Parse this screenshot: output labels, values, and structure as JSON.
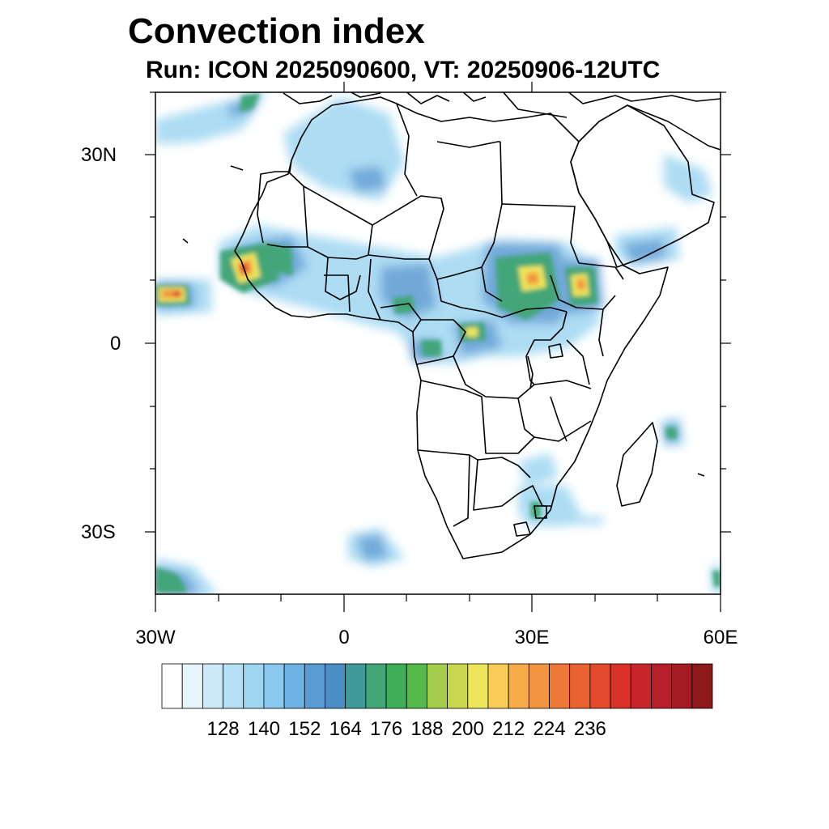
{
  "header": {
    "title": "Convection index",
    "subtitle": "Run: ICON 2025090600,  VT: 20250906-12UTC"
  },
  "map": {
    "region": "Africa",
    "lon_range": [
      -30,
      60
    ],
    "lat_range": [
      -40,
      40
    ],
    "lat_ticks": [
      {
        "value": 30,
        "label": "30N"
      },
      {
        "value": 0,
        "label": "0"
      },
      {
        "value": -30,
        "label": "30S"
      }
    ],
    "lon_ticks": [
      {
        "value": -30,
        "label": "30W"
      },
      {
        "value": 0,
        "label": "0"
      },
      {
        "value": 30,
        "label": "30E"
      },
      {
        "value": 60,
        "label": "60E"
      }
    ]
  },
  "colorbar": {
    "labels": [
      "128",
      "140",
      "152",
      "164",
      "176",
      "188",
      "200",
      "212",
      "224",
      "236"
    ],
    "colors": [
      "#ffffff",
      "#e6f4fb",
      "#cde9f7",
      "#b5e0f5",
      "#9fd6f2",
      "#8ac9ee",
      "#6cb2e3",
      "#5a9bd4",
      "#4a8fc4",
      "#3f9a9a",
      "#43a679",
      "#3fae58",
      "#55b94a",
      "#a5cd4c",
      "#c9d74d",
      "#ede55a",
      "#f8cc55",
      "#f6ad48",
      "#f39540",
      "#ee7838",
      "#e9622f",
      "#e34a2c",
      "#d93028",
      "#c8242b",
      "#b41f2a",
      "#a41c22",
      "#8c1a1a"
    ]
  }
}
